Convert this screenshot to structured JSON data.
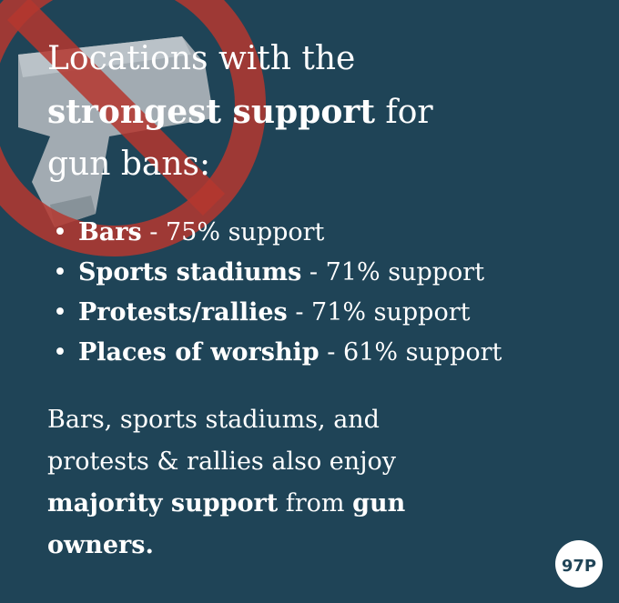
{
  "header": {
    "title_line1": "Locations with the",
    "title_bold": "strongest support",
    "title_rest": "for",
    "title_line3": "gun bans:"
  },
  "list": [
    {
      "place": "Bars",
      "detail": "- 75% support"
    },
    {
      "place": "Sports stadiums",
      "detail": "- 71% support"
    },
    {
      "place": "Protests/rallies",
      "detail": "- 71% support"
    },
    {
      "place": "Places of worship",
      "detail": "- 61% support"
    }
  ],
  "note": {
    "line1": "Bars, sports stadiums, and",
    "line2": "protests & rallies also enjoy",
    "bold1": "majority support",
    "middle": "from",
    "bold2": "gun",
    "bold3": "owners."
  },
  "logo": "97P"
}
